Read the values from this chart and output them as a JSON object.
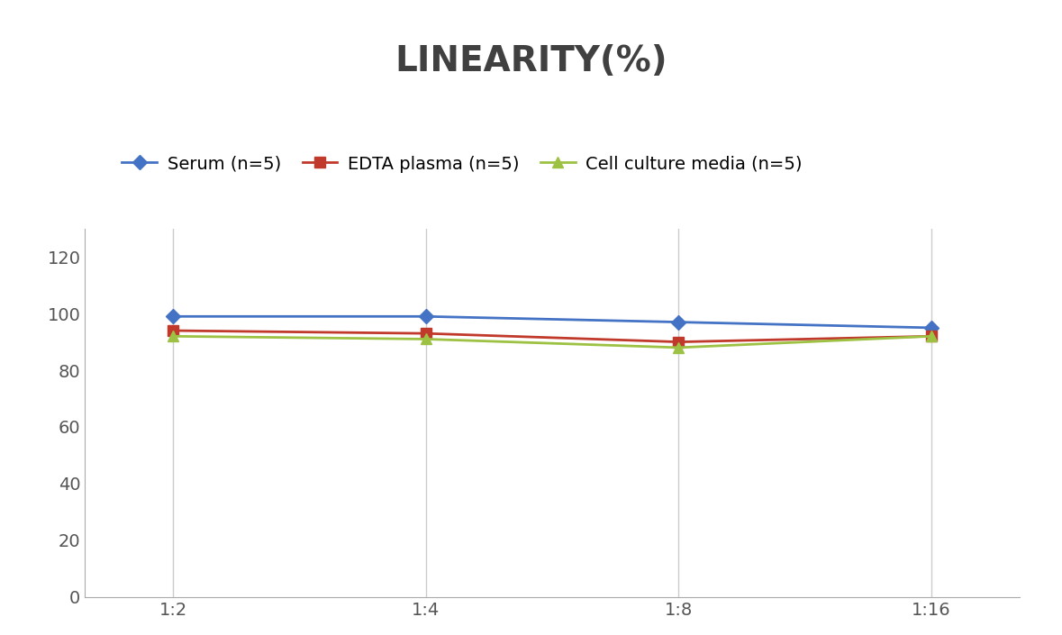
{
  "title": "LINEARITY(%)",
  "title_fontsize": 28,
  "title_fontweight": "bold",
  "title_color": "#404040",
  "x_labels": [
    "1:2",
    "1:4",
    "1:8",
    "1:16"
  ],
  "x_positions": [
    0,
    1,
    2,
    3
  ],
  "series": [
    {
      "label": "Serum (n=5)",
      "values": [
        99,
        99,
        97,
        95
      ],
      "color": "#4472C4",
      "marker": "D",
      "markersize": 8,
      "linewidth": 2
    },
    {
      "label": "EDTA plasma (n=5)",
      "values": [
        94,
        93,
        90,
        92
      ],
      "color": "#C0392B",
      "marker": "s",
      "markersize": 8,
      "linewidth": 2
    },
    {
      "label": "Cell culture media (n=5)",
      "values": [
        92,
        91,
        88,
        92
      ],
      "color": "#9DC243",
      "marker": "^",
      "markersize": 8,
      "linewidth": 2
    }
  ],
  "ylim": [
    0,
    130
  ],
  "yticks": [
    0,
    20,
    40,
    60,
    80,
    100,
    120
  ],
  "ylabel": "",
  "xlabel": "",
  "grid_color": "#CCCCCC",
  "grid_linewidth": 1,
  "background_color": "#FFFFFF",
  "legend_fontsize": 14,
  "tick_fontsize": 14
}
